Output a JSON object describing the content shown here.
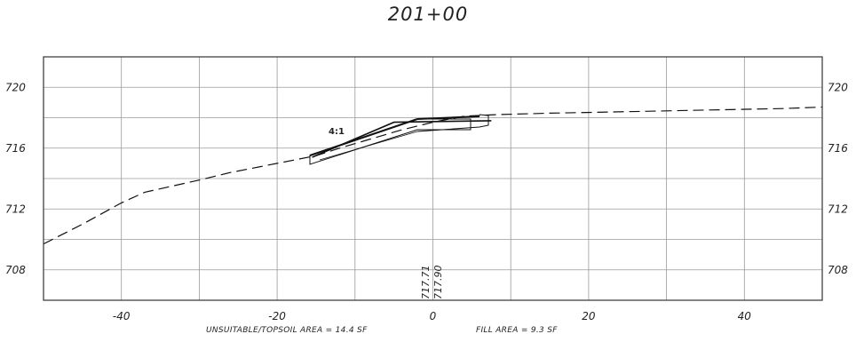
{
  "title": "201+00",
  "x_ticks": [
    "-40",
    "-20",
    "0",
    "20",
    "40"
  ],
  "y_ticks": [
    "720",
    "716",
    "712",
    "708"
  ],
  "slope_label": "4:1",
  "elevation_labels": [
    "717.71",
    "717.90"
  ],
  "notes": {
    "unsuitable": "UNSUITABLE/TOPSOIL AREA = 14.4 SF",
    "fill": "FILL AREA = 9.3 SF"
  },
  "chart_data": {
    "type": "line",
    "title": "201+00",
    "xlim": [
      -50,
      50
    ],
    "ylim": [
      706,
      722
    ],
    "x_ticks": [
      -40,
      -20,
      0,
      20,
      40
    ],
    "y_ticks": [
      708,
      712,
      716,
      720
    ],
    "grid": true,
    "series": [
      {
        "style": "dashed",
        "x": [
          -50,
          -45,
          -40,
          -37,
          -30,
          -26,
          -20,
          -15,
          -12,
          -8,
          -4,
          0,
          4,
          8,
          15,
          25,
          35,
          45,
          50
        ],
        "y": [
          709.7,
          711.0,
          712.4,
          713.1,
          713.9,
          714.4,
          715.0,
          715.5,
          716.0,
          716.6,
          717.2,
          717.7,
          718.1,
          718.2,
          718.3,
          718.4,
          718.5,
          718.6,
          718.7
        ]
      },
      {
        "style": "solid",
        "x": [
          -15.5,
          -5,
          7.5
        ],
        "y": [
          715.4,
          717.7,
          717.8
        ]
      }
    ]
  }
}
